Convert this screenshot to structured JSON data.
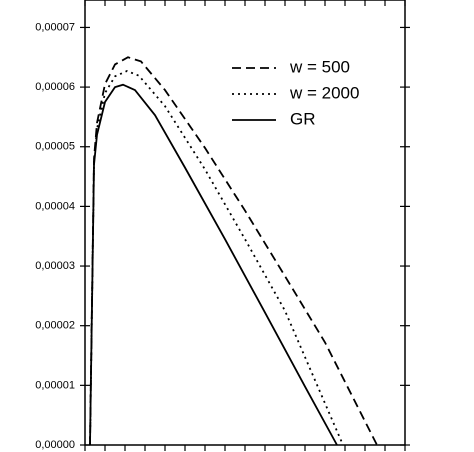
{
  "chart_data": {
    "type": "line",
    "xlim": [
      0,
      16
    ],
    "xticks": [
      0,
      1,
      2,
      3,
      4,
      5,
      6,
      7,
      8,
      9,
      10,
      11,
      12,
      13,
      14,
      15,
      16
    ],
    "ylim": [
      0,
      7.46e-05
    ],
    "yticks": [
      {
        "value": 0,
        "label": "0,00000"
      },
      {
        "value": 1e-05,
        "label": "0,00001"
      },
      {
        "value": 2e-05,
        "label": "0,00002"
      },
      {
        "value": 3e-05,
        "label": "0,00003"
      },
      {
        "value": 4e-05,
        "label": "0,00004"
      },
      {
        "value": 5e-05,
        "label": "0,00005"
      },
      {
        "value": 6e-05,
        "label": "0,00006"
      },
      {
        "value": 7e-05,
        "label": "0,00007"
      }
    ],
    "legend": "upper right",
    "series": [
      {
        "name": "w = 500",
        "color": "#000000",
        "linestyle": "dashed",
        "x": [
          0.25,
          0.45,
          0.6,
          1.0,
          1.5,
          2.15,
          2.8,
          4,
          6,
          8,
          10,
          12,
          14.6
        ],
        "values": [
          0,
          4.8e-05,
          5.4e-05,
          6.05e-05,
          6.38e-05,
          6.5e-05,
          6.43e-05,
          5.95e-05,
          4.98e-05,
          3.93e-05,
          2.83e-05,
          1.72e-05,
          0
        ]
      },
      {
        "name": "w = 2000",
        "color": "#000000",
        "linestyle": "dotted",
        "x": [
          0.25,
          0.45,
          0.6,
          1.0,
          1.5,
          2.1,
          2.7,
          4,
          6,
          8,
          10,
          12.9
        ],
        "values": [
          0,
          4.75e-05,
          5.3e-05,
          5.9e-05,
          6.18e-05,
          6.27e-05,
          6.19e-05,
          5.68e-05,
          4.62e-05,
          3.45e-05,
          2.25e-05,
          0
        ]
      },
      {
        "name": "GR",
        "color": "#000000",
        "linestyle": "solid",
        "x": [
          0.25,
          0.45,
          0.6,
          1.0,
          1.5,
          1.9,
          2.5,
          3.5,
          5,
          7,
          9,
          11,
          12.6
        ],
        "values": [
          0,
          4.7e-05,
          5.2e-05,
          5.75e-05,
          6e-05,
          6.04e-05,
          5.95e-05,
          5.53e-05,
          4.65e-05,
          3.45e-05,
          2.22e-05,
          9.8e-06,
          0
        ]
      }
    ]
  }
}
